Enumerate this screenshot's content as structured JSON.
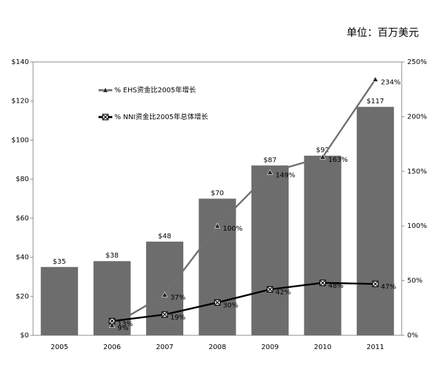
{
  "chart_data": {
    "type": "bar",
    "unit_label": "单位：百万美元",
    "categories": [
      "2005",
      "2006",
      "2007",
      "2008",
      "2009",
      "2010",
      "2011"
    ],
    "values": [
      35,
      38,
      48,
      70,
      87,
      92,
      117
    ],
    "value_labels": [
      "$35",
      "$38",
      "$48",
      "$70",
      "$87",
      "$92",
      "$117"
    ],
    "color": "#6d6d6d",
    "ylim": [
      0,
      140
    ],
    "yticks": [
      {
        "value": 0,
        "label": "$0"
      },
      {
        "value": 20,
        "label": "$20"
      },
      {
        "value": 40,
        "label": "$40"
      },
      {
        "value": 60,
        "label": "$60"
      },
      {
        "value": 80,
        "label": "$80"
      },
      {
        "value": 100,
        "label": "$100"
      },
      {
        "value": 120,
        "label": "$120"
      },
      {
        "value": 140,
        "label": "$140"
      }
    ],
    "y2lim": [
      0,
      250
    ],
    "y2ticks": [
      {
        "value": 0,
        "label": "0%"
      },
      {
        "value": 50,
        "label": "50%"
      },
      {
        "value": 100,
        "label": "100%"
      },
      {
        "value": 150,
        "label": "150%"
      },
      {
        "value": 200,
        "label": "200%"
      },
      {
        "value": 250,
        "label": "250%"
      }
    ],
    "series": [
      {
        "name": "% EHS资金比2005年增长",
        "color": "#707070",
        "marker": "triangle",
        "axis": "y2",
        "values": [
          null,
          9,
          37,
          100,
          149,
          163,
          234
        ],
        "value_labels": [
          null,
          "9%",
          "37%",
          "100%",
          "149%",
          "163%",
          "234%"
        ]
      },
      {
        "name": "% NNI资金比2005年总体增长",
        "color": "#000000",
        "marker": "xbox",
        "axis": "y2",
        "values": [
          null,
          13,
          19,
          30,
          42,
          48,
          47
        ],
        "value_labels": [
          null,
          "13%",
          "19%",
          "30%",
          "42%",
          "48%",
          "47%"
        ]
      }
    ],
    "grid": false
  }
}
